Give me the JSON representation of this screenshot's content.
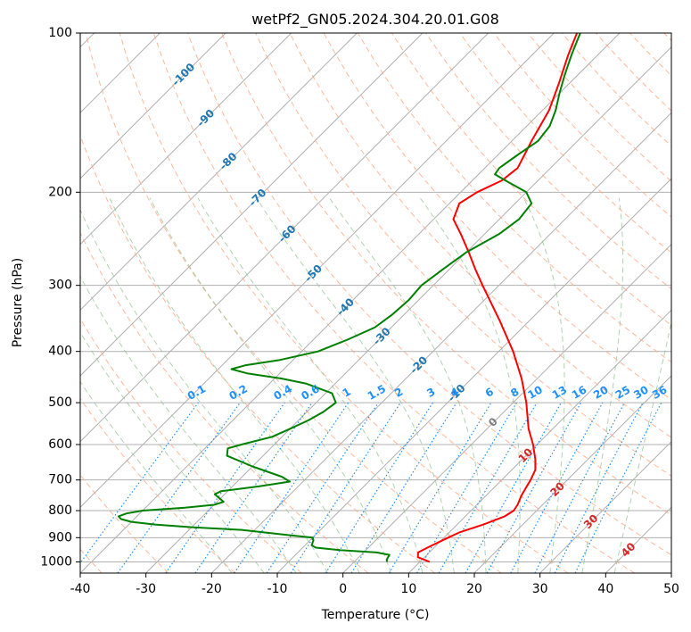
{
  "chart_data": {
    "type": "line",
    "subtype": "skew-T log-P diagram",
    "title": "wetPf2_GN05.2024.304.20.01.G08",
    "xlabel": "Temperature (°C)",
    "ylabel": "Pressure (hPa)",
    "xlim": [
      -40,
      50
    ],
    "ylim": [
      1050,
      100
    ],
    "y_scale": "log",
    "grid": true,
    "x_ticks": [
      -40,
      -30,
      -20,
      -10,
      0,
      10,
      20,
      30,
      40,
      50
    ],
    "y_ticks": [
      100,
      200,
      300,
      400,
      500,
      600,
      700,
      800,
      900,
      1000
    ],
    "series": [
      {
        "color": "#ff0000",
        "points": [
          [
            1000,
            11.5
          ],
          [
            980,
            9.0
          ],
          [
            960,
            8.3
          ],
          [
            940,
            9.0
          ],
          [
            910,
            10.2
          ],
          [
            880,
            11.5
          ],
          [
            850,
            14.0
          ],
          [
            820,
            16.0
          ],
          [
            800,
            16.5
          ],
          [
            780,
            16.2
          ],
          [
            750,
            15.4
          ],
          [
            720,
            14.8
          ],
          [
            700,
            14.4
          ],
          [
            670,
            13.6
          ],
          [
            640,
            12.0
          ],
          [
            600,
            9.4
          ],
          [
            560,
            6.3
          ],
          [
            500,
            2.0
          ],
          [
            450,
            -2.4
          ],
          [
            400,
            -7.8
          ],
          [
            350,
            -14.5
          ],
          [
            300,
            -22.5
          ],
          [
            280,
            -26.0
          ],
          [
            260,
            -29.6
          ],
          [
            240,
            -33.6
          ],
          [
            225,
            -37.0
          ],
          [
            210,
            -38.5
          ],
          [
            200,
            -37.5
          ],
          [
            190,
            -35.5
          ],
          [
            180,
            -35.0
          ],
          [
            160,
            -37.0
          ],
          [
            140,
            -39.0
          ],
          [
            125,
            -41.5
          ],
          [
            110,
            -44.5
          ],
          [
            100,
            -46.5
          ]
        ]
      },
      {
        "color": "#008000",
        "points": [
          [
            1000,
            5.0
          ],
          [
            990,
            4.6
          ],
          [
            970,
            4.3
          ],
          [
            960,
            2.0
          ],
          [
            950,
            -4.0
          ],
          [
            940,
            -8.0
          ],
          [
            930,
            -9.0
          ],
          [
            910,
            -9.5
          ],
          [
            900,
            -10.0
          ],
          [
            890,
            -14.0
          ],
          [
            870,
            -22.0
          ],
          [
            860,
            -30.0
          ],
          [
            850,
            -36.0
          ],
          [
            840,
            -40.0
          ],
          [
            830,
            -42.0
          ],
          [
            820,
            -42.8
          ],
          [
            810,
            -42.0
          ],
          [
            800,
            -40.0
          ],
          [
            790,
            -34.0
          ],
          [
            780,
            -30.0
          ],
          [
            770,
            -29.0
          ],
          [
            760,
            -30.0
          ],
          [
            745,
            -31.5
          ],
          [
            735,
            -31.0
          ],
          [
            720,
            -26.0
          ],
          [
            705,
            -22.0
          ],
          [
            690,
            -24.0
          ],
          [
            660,
            -30.0
          ],
          [
            630,
            -35.5
          ],
          [
            610,
            -36.5
          ],
          [
            600,
            -35.0
          ],
          [
            580,
            -31.5
          ],
          [
            560,
            -30.0
          ],
          [
            540,
            -28.5
          ],
          [
            520,
            -27.5
          ],
          [
            500,
            -27.0
          ],
          [
            480,
            -29.0
          ],
          [
            460,
            -34.5
          ],
          [
            450,
            -39.0
          ],
          [
            440,
            -45.0
          ],
          [
            432,
            -48.0
          ],
          [
            425,
            -46.5
          ],
          [
            415,
            -42.0
          ],
          [
            400,
            -37.5
          ],
          [
            380,
            -34.8
          ],
          [
            360,
            -32.5
          ],
          [
            340,
            -31.8
          ],
          [
            320,
            -31.5
          ],
          [
            300,
            -31.8
          ],
          [
            280,
            -31.0
          ],
          [
            260,
            -30.0
          ],
          [
            240,
            -27.8
          ],
          [
            225,
            -27.0
          ],
          [
            210,
            -27.5
          ],
          [
            200,
            -30.0
          ],
          [
            190,
            -35.0
          ],
          [
            185,
            -37.5
          ],
          [
            180,
            -37.8
          ],
          [
            170,
            -37.0
          ],
          [
            160,
            -36.0
          ],
          [
            150,
            -36.5
          ],
          [
            140,
            -38.0
          ],
          [
            130,
            -40.0
          ],
          [
            120,
            -42.0
          ],
          [
            110,
            -44.0
          ],
          [
            100,
            -46.0
          ]
        ]
      }
    ],
    "isotherm_labels": [
      "-100",
      "-90",
      "-80",
      "-70",
      "-60",
      "-50",
      "-40",
      "-30",
      "-20",
      "-10",
      "0",
      "10",
      "20",
      "30",
      "40"
    ],
    "mixing_ratio_labels": [
      "0.1",
      "0.2",
      "0.4",
      "0.6",
      "1",
      "1.5",
      "2",
      "3",
      "4",
      "6",
      "8",
      "10",
      "13",
      "16",
      "20",
      "25",
      "30",
      "36"
    ],
    "mixing_ratio_values": [
      0.1,
      0.2,
      0.4,
      0.6,
      1,
      1.5,
      2,
      3,
      4,
      6,
      8,
      10,
      13,
      16,
      20,
      25,
      30,
      36
    ],
    "colors": {
      "isobar_isotherm_grid": "#b0b0b0",
      "dry_adiabat": "#ffa07a",
      "moist_adiabat": "#90c090",
      "mixing_ratio": "#1e90ff",
      "isotherm_label_cold": "#1f77b4",
      "isotherm_label_warm": "#d62728",
      "zero_label": "#808080"
    }
  }
}
